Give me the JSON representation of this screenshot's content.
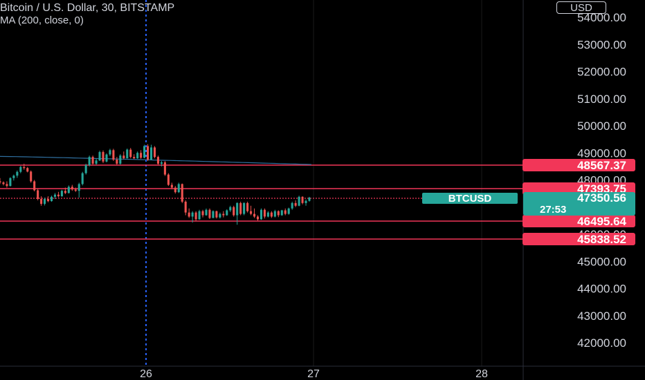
{
  "header": {
    "title": "Bitcoin / U.S. Dollar, 30, BITSTAMP",
    "indicator": "MA (200, close, 0)"
  },
  "currency_button": {
    "label": "USD"
  },
  "colors": {
    "background": "#000000",
    "up": "#26a69a",
    "down": "#ef5350",
    "level_line": "#f23658",
    "ma_line": "#2f6f9f",
    "text": "#d1d4dc",
    "grid": "#1a1a1a",
    "crosshair": "#2962ff"
  },
  "chart_data": {
    "type": "candlestick",
    "symbol": "BTCUSD",
    "interval": "30",
    "exchange": "BITSTAMP",
    "y_axis": {
      "range": [
        41500,
        54600
      ],
      "tick_labels": [
        "54000.00",
        "53000.00",
        "52000.00",
        "51000.00",
        "50000.00",
        "49000.00",
        "48000.00",
        "46000.00",
        "45000.00",
        "44000.00",
        "43000.00",
        "42000.00"
      ]
    },
    "x_axis": {
      "tick_labels": [
        "26",
        "27",
        "28"
      ]
    },
    "levels": [
      "48567.37",
      "47393.75",
      "46495.64",
      "45838.52"
    ],
    "current_price": {
      "label": "BTCUSD",
      "value": "47350.56",
      "countdown": "27:53"
    },
    "moving_average": {
      "period": 200,
      "start": 48870,
      "end": 48570
    },
    "candles": [
      [
        47950,
        48070,
        47850,
        47910
      ],
      [
        47910,
        47950,
        47800,
        47850
      ],
      [
        47850,
        47950,
        47720,
        47780
      ],
      [
        47780,
        48100,
        47760,
        48070
      ],
      [
        48070,
        48200,
        47980,
        48160
      ],
      [
        48160,
        48350,
        48080,
        48300
      ],
      [
        48300,
        48520,
        48250,
        48480
      ],
      [
        48480,
        48600,
        48380,
        48440
      ],
      [
        48440,
        48480,
        48280,
        48310
      ],
      [
        48310,
        48350,
        47900,
        47950
      ],
      [
        47950,
        48000,
        47580,
        47620
      ],
      [
        47620,
        47680,
        47250,
        47300
      ],
      [
        47300,
        47400,
        47050,
        47120
      ],
      [
        47120,
        47350,
        47060,
        47300
      ],
      [
        47300,
        47400,
        47180,
        47220
      ],
      [
        47220,
        47420,
        47200,
        47380
      ],
      [
        47380,
        47520,
        47300,
        47460
      ],
      [
        47460,
        47560,
        47360,
        47400
      ],
      [
        47400,
        47640,
        47380,
        47600
      ],
      [
        47600,
        47720,
        47480,
        47520
      ],
      [
        47520,
        47800,
        47500,
        47750
      ],
      [
        47750,
        47820,
        47600,
        47650
      ],
      [
        47650,
        47720,
        47560,
        47600
      ],
      [
        47600,
        47900,
        47350,
        47850
      ],
      [
        47850,
        48300,
        47800,
        48250
      ],
      [
        48250,
        48600,
        48200,
        48550
      ],
      [
        48550,
        48900,
        48500,
        48850
      ],
      [
        48850,
        48900,
        48560,
        48600
      ],
      [
        48600,
        48780,
        48550,
        48720
      ],
      [
        48720,
        49080,
        48700,
        49030
      ],
      [
        49030,
        49090,
        48620,
        48680
      ],
      [
        48680,
        48980,
        48650,
        48940
      ],
      [
        48940,
        49150,
        48880,
        49100
      ],
      [
        49100,
        49150,
        48700,
        48750
      ],
      [
        48750,
        48850,
        48550,
        48600
      ],
      [
        48600,
        48950,
        48560,
        48900
      ],
      [
        48900,
        49050,
        48760,
        48800
      ],
      [
        48800,
        49160,
        48790,
        49120
      ],
      [
        49120,
        49180,
        48800,
        48850
      ],
      [
        48850,
        48950,
        48770,
        48800
      ],
      [
        48800,
        49050,
        48780,
        49000
      ],
      [
        49000,
        49100,
        48780,
        48820
      ],
      [
        48820,
        49300,
        48800,
        49250
      ],
      [
        49250,
        49320,
        48700,
        48750
      ],
      [
        48750,
        49300,
        48740,
        49200
      ],
      [
        49200,
        49250,
        48800,
        48850
      ],
      [
        48850,
        48900,
        48560,
        48600
      ],
      [
        48600,
        48700,
        48500,
        48650
      ],
      [
        48650,
        48700,
        48150,
        48200
      ],
      [
        48200,
        48250,
        47780,
        47820
      ],
      [
        47820,
        47900,
        47660,
        47720
      ],
      [
        47720,
        47780,
        47500,
        47550
      ],
      [
        47550,
        47900,
        47520,
        47850
      ],
      [
        47850,
        47870,
        47150,
        47200
      ],
      [
        47200,
        47250,
        46700,
        46800
      ],
      [
        46800,
        46950,
        46600,
        46650
      ],
      [
        46650,
        46850,
        46430,
        46800
      ],
      [
        46800,
        46850,
        46480,
        46550
      ],
      [
        46550,
        46900,
        46530,
        46850
      ],
      [
        46850,
        46900,
        46620,
        46700
      ],
      [
        46700,
        46950,
        46680,
        46900
      ],
      [
        46900,
        46950,
        46560,
        46600
      ],
      [
        46600,
        46880,
        46590,
        46850
      ],
      [
        46850,
        46870,
        46580,
        46620
      ],
      [
        46620,
        46800,
        46580,
        46750
      ],
      [
        46750,
        46850,
        46620,
        46700
      ],
      [
        46700,
        46920,
        46680,
        46880
      ],
      [
        46880,
        47050,
        46820,
        47000
      ],
      [
        47000,
        47050,
        46650,
        46700
      ],
      [
        46700,
        47180,
        46350,
        47150
      ],
      [
        47150,
        47200,
        46700,
        46750
      ],
      [
        46750,
        47180,
        46700,
        47150
      ],
      [
        47150,
        47200,
        46800,
        46850
      ],
      [
        46850,
        47050,
        46700,
        46750
      ],
      [
        46750,
        46950,
        46600,
        46650
      ],
      [
        46650,
        46700,
        46500,
        46550
      ],
      [
        46550,
        46950,
        46530,
        46900
      ],
      [
        46900,
        46950,
        46580,
        46650
      ],
      [
        46650,
        46850,
        46620,
        46800
      ],
      [
        46800,
        46850,
        46600,
        46650
      ],
      [
        46650,
        46900,
        46620,
        46850
      ],
      [
        46850,
        46880,
        46630,
        46700
      ],
      [
        46700,
        46900,
        46680,
        46880
      ],
      [
        46880,
        46950,
        46700,
        46750
      ],
      [
        46750,
        46980,
        46720,
        46950
      ],
      [
        46950,
        47200,
        46900,
        47150
      ],
      [
        47150,
        47250,
        47000,
        47050
      ],
      [
        47050,
        47420,
        47030,
        47380
      ],
      [
        47380,
        47400,
        47100,
        47150
      ],
      [
        47150,
        47280,
        47050,
        47230
      ],
      [
        47230,
        47380,
        47200,
        47350
      ]
    ]
  }
}
